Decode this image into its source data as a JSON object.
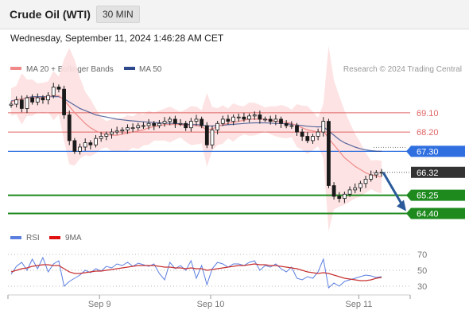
{
  "header": {
    "title": "Crude Oil (WTI)",
    "timeframe": "30 MIN",
    "datetime": "Wednesday, September 11, 2024 1:46:28 AM CET"
  },
  "legend": {
    "ma20": "MA 20 + Bollinger Bands",
    "ma50": "MA 50",
    "credit": "Research © 2024 Trading Central",
    "rsi": "RSI",
    "ma9": "9MA"
  },
  "colors": {
    "ma20": "#f08a8a",
    "ma50": "#2f4a8c",
    "bollinger": "#fde0e0",
    "resistance": "#e06666",
    "pivot": "#2f6fe0",
    "support": "#1e8a1e",
    "last_price": "#333333",
    "arrow": "#2a5a9a",
    "candle": "#1a1a1a",
    "rsi": "#5b7fe0"
  },
  "chart_data": [
    {
      "type": "line",
      "title": "Crude Oil (WTI)",
      "timeframe": "30 MIN",
      "x_ticks": [
        "Sep 9",
        "Sep 10",
        "Sep 11"
      ],
      "levels": [
        {
          "label": "69.10",
          "value": 69.1,
          "kind": "resistance"
        },
        {
          "label": "68.20",
          "value": 68.2,
          "kind": "resistance"
        },
        {
          "label": "67.30",
          "value": 67.3,
          "kind": "pivot"
        },
        {
          "label": "66.32",
          "value": 66.32,
          "kind": "last"
        },
        {
          "label": "65.25",
          "value": 65.25,
          "kind": "support"
        },
        {
          "label": "64.40",
          "value": 64.4,
          "kind": "support"
        }
      ],
      "close_series": [
        69.5,
        69.7,
        69.3,
        69.8,
        69.6,
        69.8,
        69.7,
        69.9,
        70.3,
        70.2,
        69.0,
        67.8,
        67.3,
        67.5,
        67.7,
        67.6,
        67.9,
        68.0,
        68.1,
        68.2,
        68.25,
        68.3,
        68.4,
        68.4,
        68.5,
        68.5,
        68.6,
        68.5,
        68.6,
        68.7,
        68.8,
        68.6,
        68.6,
        68.4,
        68.7,
        68.8,
        68.5,
        67.6,
        68.3,
        68.6,
        68.8,
        68.7,
        68.9,
        68.9,
        68.8,
        68.95,
        69.0,
        68.8,
        68.8,
        68.7,
        68.8,
        68.6,
        68.5,
        68.5,
        68.2,
        68.0,
        67.8,
        68.0,
        68.2,
        68.7,
        65.7,
        65.2,
        65.1,
        65.3,
        65.5,
        65.6,
        65.8,
        66.0,
        66.2,
        66.3,
        66.32
      ],
      "ma20_series": [
        69.6,
        69.7,
        69.75,
        69.8,
        69.8,
        69.8,
        69.8,
        69.85,
        69.9,
        69.9,
        69.7,
        69.4,
        69.1,
        68.85,
        68.6,
        68.4,
        68.25,
        68.15,
        68.1,
        68.05,
        68.05,
        68.1,
        68.15,
        68.2,
        68.25,
        68.3,
        68.4,
        68.45,
        68.5,
        68.55,
        68.55,
        68.55,
        68.55,
        68.5,
        68.5,
        68.5,
        68.45,
        68.3,
        68.35,
        68.45,
        68.55,
        68.6,
        68.65,
        68.7,
        68.75,
        68.8,
        68.8,
        68.8,
        68.8,
        68.75,
        68.7,
        68.7,
        68.65,
        68.6,
        68.5,
        68.4,
        68.3,
        68.25,
        68.2,
        68.25,
        67.9,
        67.6,
        67.3,
        67.0,
        66.8,
        66.6,
        66.45,
        66.3,
        66.2,
        66.15,
        66.1
      ],
      "ma50_series": [
        69.65,
        69.7,
        69.75,
        69.8,
        69.85,
        69.85,
        69.85,
        69.85,
        69.85,
        69.85,
        69.75,
        69.6,
        69.45,
        69.3,
        69.2,
        69.1,
        69.0,
        68.95,
        68.9,
        68.85,
        68.8,
        68.77,
        68.74,
        68.72,
        68.7,
        68.68,
        68.66,
        68.64,
        68.63,
        68.62,
        68.61,
        68.6,
        68.58,
        68.56,
        68.55,
        68.55,
        68.53,
        68.48,
        68.48,
        68.5,
        68.52,
        68.54,
        68.56,
        68.58,
        68.6,
        68.62,
        68.63,
        68.63,
        68.63,
        68.62,
        68.6,
        68.6,
        68.58,
        68.56,
        68.53,
        68.5,
        68.47,
        68.45,
        68.44,
        68.45,
        68.25,
        68.05,
        67.85,
        67.7,
        67.6,
        67.5,
        67.42,
        67.37,
        67.33,
        67.31,
        67.3
      ],
      "ylim": [
        63.9,
        70.8
      ]
    },
    {
      "type": "line",
      "title": "RSI",
      "series_names": [
        "RSI",
        "9MA"
      ],
      "y_ticks": [
        "70",
        "50",
        "30"
      ],
      "ylim": [
        20,
        80
      ],
      "rsi_series": [
        45,
        55,
        60,
        50,
        64,
        52,
        66,
        48,
        58,
        62,
        30,
        36,
        40,
        44,
        50,
        47,
        52,
        49,
        55,
        53,
        58,
        56,
        60,
        55,
        59,
        57,
        55,
        58,
        46,
        38,
        60,
        52,
        56,
        50,
        62,
        40,
        56,
        32,
        52,
        60,
        58,
        54,
        58,
        58,
        56,
        60,
        62,
        50,
        56,
        54,
        58,
        52,
        48,
        54,
        40,
        38,
        42,
        40,
        48,
        64,
        28,
        34,
        30,
        36,
        38,
        40,
        42,
        44,
        43,
        41,
        42
      ],
      "ma9_series": [
        48,
        50,
        52,
        53,
        55,
        56,
        57,
        57,
        56,
        56,
        52,
        48,
        46,
        46,
        47,
        48,
        49,
        49,
        50,
        51,
        52,
        53,
        54,
        55,
        56,
        56,
        56,
        56,
        55,
        54,
        54,
        53,
        53,
        52,
        53,
        52,
        52,
        50,
        51,
        52,
        53,
        54,
        55,
        56,
        56,
        57,
        58,
        57,
        57,
        56,
        56,
        55,
        54,
        53,
        52,
        50,
        48,
        47,
        46,
        47,
        46,
        44,
        42,
        40,
        39,
        38,
        37,
        37,
        38,
        40,
        41
      ]
    }
  ]
}
